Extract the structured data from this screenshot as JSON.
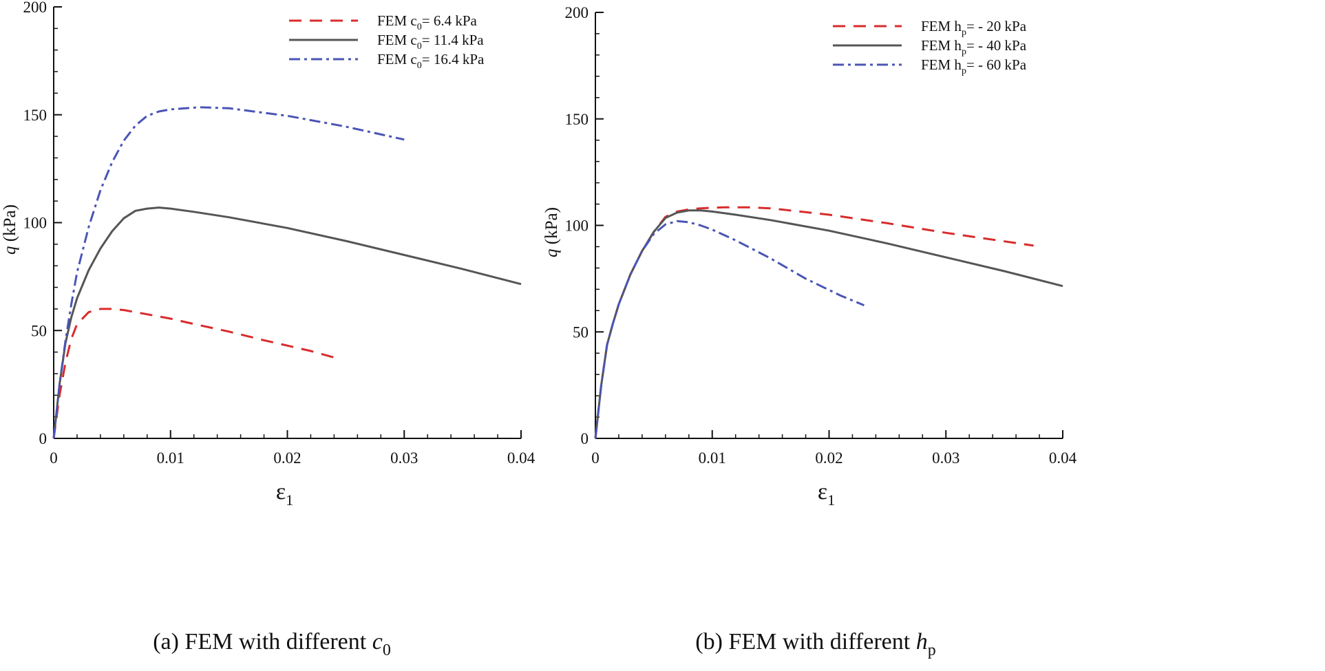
{
  "colors": {
    "red": "#d92b2b",
    "black": "#555555",
    "blue": "#4a55b5",
    "axis": "#111111"
  },
  "chart_data": [
    {
      "type": "line",
      "caption": {
        "prefix": "(a) FEM with different ",
        "sym": "c",
        "sub": "0"
      },
      "xlabel": {
        "sym": "ε",
        "sub": "1"
      },
      "ylabel": {
        "sym": "q",
        "unit": " (kPa)"
      },
      "xlim": [
        0,
        0.04
      ],
      "ylim": [
        0,
        200
      ],
      "xticks": [
        0,
        0.01,
        0.02,
        0.03,
        0.04
      ],
      "xtick_labels": [
        "0",
        "0.01",
        "0.02",
        "0.03",
        "0.04"
      ],
      "yticks": [
        0,
        50,
        100,
        150,
        200
      ],
      "ytick_labels": [
        "0",
        "50",
        "100",
        "150",
        "200"
      ],
      "legend_position": "top-right",
      "series": [
        {
          "name": "FEM c0= 6.4 kPa",
          "label_main": "FEM c",
          "label_sub": "0",
          "label_rest": "= 6.4 kPa",
          "style": "dashed",
          "color_key": "red",
          "x": [
            0,
            0.0005,
            0.001,
            0.0015,
            0.002,
            0.003,
            0.004,
            0.005,
            0.006,
            0.008,
            0.01,
            0.012,
            0.015,
            0.018,
            0.02,
            0.022,
            0.024
          ],
          "y": [
            0,
            20,
            35,
            46,
            53,
            58.5,
            60,
            60,
            59.5,
            57.5,
            55.5,
            53,
            49.5,
            45.5,
            43,
            40.5,
            37.5
          ]
        },
        {
          "name": "FEM c0= 11.4 kPa",
          "label_main": "FEM c",
          "label_sub": "0",
          "label_rest": "= 11.4 kPa",
          "style": "solid",
          "color_key": "black",
          "x": [
            0,
            0.0005,
            0.001,
            0.0015,
            0.002,
            0.003,
            0.004,
            0.005,
            0.006,
            0.007,
            0.008,
            0.009,
            0.01,
            0.012,
            0.015,
            0.02,
            0.025,
            0.03,
            0.035,
            0.04
          ],
          "y": [
            0,
            25,
            44,
            56,
            65,
            78,
            88,
            96,
            102,
            105.5,
            106.5,
            107,
            106.5,
            105,
            102.5,
            97.5,
            91.5,
            85,
            78.5,
            71.5
          ]
        },
        {
          "name": "FEM c0= 16.4 kPa",
          "label_main": "FEM c",
          "label_sub": "0",
          "label_rest": "= 16.4 kPa",
          "style": "dashdot",
          "color_key": "blue",
          "x": [
            0,
            0.0005,
            0.001,
            0.0015,
            0.002,
            0.003,
            0.004,
            0.005,
            0.006,
            0.007,
            0.008,
            0.009,
            0.01,
            0.0125,
            0.015,
            0.02,
            0.025,
            0.03
          ],
          "y": [
            0,
            25,
            45,
            62,
            77,
            98,
            115,
            128,
            138,
            145,
            149.5,
            151.5,
            152.5,
            153.5,
            153,
            149.5,
            144.5,
            138.5
          ]
        }
      ]
    },
    {
      "type": "line",
      "caption": {
        "prefix": "(b) FEM with different ",
        "sym": "h",
        "sub": "p"
      },
      "xlabel": {
        "sym": "ε",
        "sub": "1"
      },
      "ylabel": {
        "sym": "q",
        "unit": " (kPa)"
      },
      "xlim": [
        0,
        0.04
      ],
      "ylim": [
        0,
        200
      ],
      "xticks": [
        0,
        0.01,
        0.02,
        0.03,
        0.04
      ],
      "xtick_labels": [
        "0",
        "0.01",
        "0.02",
        "0.03",
        "0.04"
      ],
      "yticks": [
        0,
        50,
        100,
        150,
        200
      ],
      "ytick_labels": [
        "0",
        "50",
        "100",
        "150",
        "200"
      ],
      "legend_position": "top-right",
      "series": [
        {
          "name": "FEM hp= - 20 kPa",
          "label_main": "FEM h",
          "label_sub": "p",
          "label_rest": "= - 20 kPa",
          "style": "dashed",
          "color_key": "red",
          "x": [
            0,
            0.0005,
            0.001,
            0.0015,
            0.002,
            0.003,
            0.004,
            0.005,
            0.006,
            0.007,
            0.008,
            0.009,
            0.011,
            0.013,
            0.015,
            0.02,
            0.025,
            0.03,
            0.035,
            0.0375
          ],
          "y": [
            0,
            25,
            44,
            54,
            63,
            77,
            88,
            97,
            104,
            106.5,
            107.5,
            108,
            108.5,
            108.5,
            108,
            105,
            101,
            96.5,
            92.5,
            90.5
          ]
        },
        {
          "name": "FEM hp= - 40 kPa",
          "label_main": "FEM h",
          "label_sub": "p",
          "label_rest": "= - 40 kPa",
          "style": "solid",
          "color_key": "black",
          "x": [
            0,
            0.0005,
            0.001,
            0.0015,
            0.002,
            0.003,
            0.004,
            0.005,
            0.006,
            0.007,
            0.008,
            0.009,
            0.01,
            0.012,
            0.015,
            0.02,
            0.025,
            0.03,
            0.035,
            0.04
          ],
          "y": [
            0,
            25,
            44,
            54,
            63,
            77,
            88,
            97,
            103.5,
            106,
            107,
            107,
            106.5,
            105,
            102.5,
            97.5,
            91.5,
            85,
            78.5,
            71.5
          ]
        },
        {
          "name": "FEM hp= - 60 kPa",
          "label_main": "FEM h",
          "label_sub": "p",
          "label_rest": "= - 60 kPa",
          "style": "dashdot",
          "color_key": "blue",
          "x": [
            0,
            0.0005,
            0.001,
            0.0015,
            0.002,
            0.003,
            0.004,
            0.005,
            0.006,
            0.007,
            0.008,
            0.009,
            0.01,
            0.012,
            0.015,
            0.018,
            0.021,
            0.023
          ],
          "y": [
            0,
            25,
            44,
            54,
            63,
            77,
            88,
            96,
            100.5,
            102,
            101.5,
            100,
            98,
            93,
            84.5,
            75,
            67,
            62.5
          ]
        }
      ]
    }
  ]
}
